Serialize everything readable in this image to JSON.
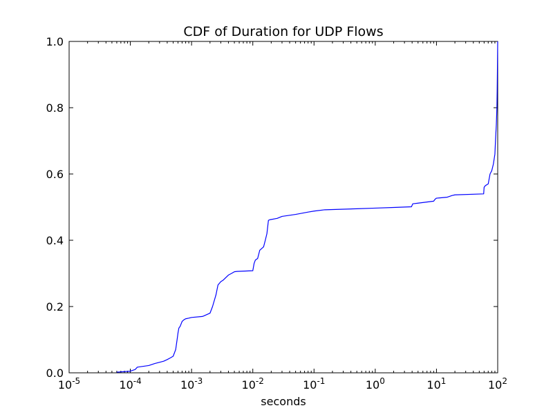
{
  "chart_data": {
    "type": "line",
    "title": "CDF of Duration for UDP Flows",
    "xlabel": "seconds",
    "ylabel": "",
    "xscale": "log",
    "xlim": [
      1e-05,
      100
    ],
    "ylim": [
      0.0,
      1.0
    ],
    "grid": false,
    "legend": "none",
    "line_color": "#0000ff",
    "x_ticks": [
      {
        "value": 1e-05,
        "base": "10",
        "exp": "-5"
      },
      {
        "value": 0.0001,
        "base": "10",
        "exp": "-4"
      },
      {
        "value": 0.001,
        "base": "10",
        "exp": "-3"
      },
      {
        "value": 0.01,
        "base": "10",
        "exp": "-2"
      },
      {
        "value": 0.1,
        "base": "10",
        "exp": "-1"
      },
      {
        "value": 1,
        "base": "10",
        "exp": "0"
      },
      {
        "value": 10,
        "base": "10",
        "exp": "1"
      },
      {
        "value": 100,
        "base": "10",
        "exp": "2"
      }
    ],
    "y_ticks": [
      {
        "value": 0.0,
        "label": "0.0"
      },
      {
        "value": 0.2,
        "label": "0.2"
      },
      {
        "value": 0.4,
        "label": "0.4"
      },
      {
        "value": 0.6,
        "label": "0.6"
      },
      {
        "value": 0.8,
        "label": "0.8"
      },
      {
        "value": 1.0,
        "label": "1.0"
      }
    ],
    "series": [
      {
        "x": [
          6e-05,
          0.0001,
          0.00012,
          0.00013,
          0.0002,
          0.00025,
          0.00035,
          0.0004,
          0.00045,
          0.0005,
          0.00055,
          0.00058,
          0.0006,
          0.00062,
          0.00065,
          0.0007,
          0.00075,
          0.0008,
          0.0009,
          0.001,
          0.0015,
          0.0016,
          0.002,
          0.0022,
          0.0025,
          0.0027,
          0.003,
          0.0033,
          0.004,
          0.0045,
          0.005,
          0.0055,
          0.01,
          0.0105,
          0.011,
          0.012,
          0.013,
          0.015,
          0.016,
          0.017,
          0.018,
          0.019,
          0.025,
          0.03,
          0.05,
          0.08,
          0.1,
          0.15,
          0.5,
          1,
          2,
          3.9,
          4.1,
          5,
          9,
          9.5,
          10,
          15,
          18,
          20,
          59,
          60,
          63,
          70,
          75,
          80,
          85,
          90,
          92,
          95,
          97,
          98,
          99,
          100
        ],
        "y": [
          0.002,
          0.005,
          0.01,
          0.017,
          0.022,
          0.028,
          0.035,
          0.04,
          0.045,
          0.05,
          0.07,
          0.1,
          0.12,
          0.135,
          0.14,
          0.155,
          0.16,
          0.163,
          0.165,
          0.167,
          0.17,
          0.172,
          0.18,
          0.2,
          0.235,
          0.265,
          0.275,
          0.28,
          0.295,
          0.3,
          0.305,
          0.306,
          0.308,
          0.33,
          0.34,
          0.345,
          0.37,
          0.38,
          0.4,
          0.42,
          0.46,
          0.462,
          0.466,
          0.472,
          0.478,
          0.485,
          0.488,
          0.492,
          0.495,
          0.497,
          0.499,
          0.501,
          0.51,
          0.512,
          0.518,
          0.524,
          0.527,
          0.53,
          0.535,
          0.537,
          0.54,
          0.56,
          0.565,
          0.57,
          0.6,
          0.61,
          0.63,
          0.66,
          0.7,
          0.75,
          0.8,
          0.85,
          0.92,
          1.0
        ]
      }
    ]
  }
}
